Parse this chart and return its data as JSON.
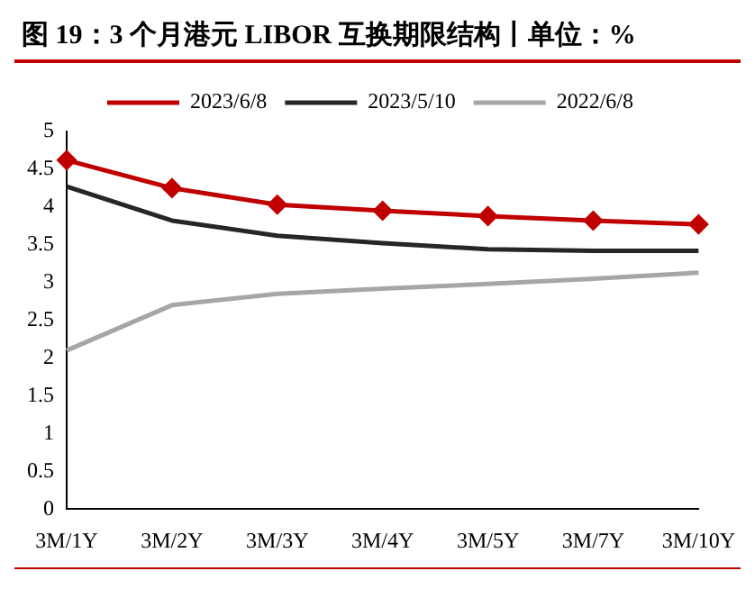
{
  "chart_data": {
    "type": "line",
    "title": "图 19：3 个月港元 LIBOR 互换期限结构丨单位：%",
    "categories": [
      "3M/1Y",
      "3M/2Y",
      "3M/3Y",
      "3M/4Y",
      "3M/5Y",
      "3M/7Y",
      "3M/10Y"
    ],
    "series": [
      {
        "name": "2023/6/8",
        "color": "#c00000",
        "marker": "diamond",
        "values": [
          4.62,
          4.25,
          4.03,
          3.95,
          3.88,
          3.82,
          3.77
        ]
      },
      {
        "name": "2023/5/10",
        "color": "#262626",
        "marker": "none",
        "values": [
          4.27,
          3.82,
          3.62,
          3.52,
          3.44,
          3.42,
          3.42
        ]
      },
      {
        "name": "2022/6/8",
        "color": "#a6a6a6",
        "marker": "none",
        "values": [
          2.1,
          2.7,
          2.85,
          2.92,
          2.98,
          3.05,
          3.13
        ]
      }
    ],
    "ylim": [
      0,
      5
    ],
    "yticks": [
      0,
      0.5,
      1,
      1.5,
      2,
      2.5,
      3,
      3.5,
      4,
      4.5,
      5
    ],
    "grid": false,
    "legend": "top"
  }
}
